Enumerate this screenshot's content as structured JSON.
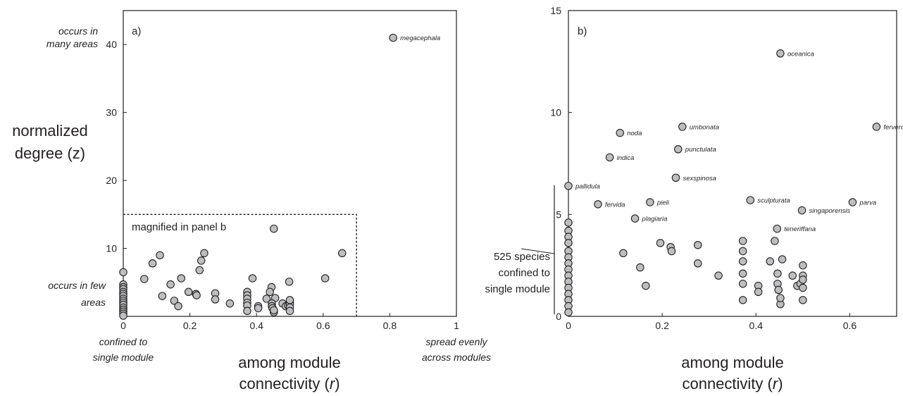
{
  "chart_data": [
    {
      "panel": "a)",
      "type": "scatter",
      "xlim": [
        0,
        1
      ],
      "ylim": [
        0,
        45
      ],
      "xticks": [
        0,
        0.2,
        0.4,
        0.6,
        0.8,
        1
      ],
      "xtick_labels": [
        "0",
        "0.2",
        "0.4",
        "0.6",
        "0.8",
        "1"
      ],
      "yticks": [
        10,
        20,
        30,
        40
      ],
      "ytick_labels": [
        "10",
        "20",
        "30",
        "40"
      ],
      "ylabel_line1": "normalized",
      "ylabel_line2": "degree (z)",
      "xlabel_line1": "among module",
      "xlabel_line2_pre": "connectivity (",
      "xlabel_line2_var": "r",
      "xlabel_line2_post": ")",
      "y_high_note_line1": "occurs in",
      "y_high_note_line2": "many areas",
      "y_low_note_line1": "occurs in few",
      "y_low_note_line2": "areas",
      "x_low_note_line1": "confined to",
      "x_low_note_line2": "single module",
      "x_high_note_line1": "spread evenly",
      "x_high_note_line2": "across modules",
      "inset_label": "magnified in panel b",
      "inset_box": {
        "x": [
          0,
          0.7
        ],
        "y": [
          0,
          15
        ]
      },
      "points": [
        {
          "x": 0.81,
          "y": 41.0,
          "label": "megacephala"
        },
        {
          "x": 0.452,
          "y": 12.9
        },
        {
          "x": 0.11,
          "y": 9.0
        },
        {
          "x": 0.243,
          "y": 9.3
        },
        {
          "x": 0.657,
          "y": 9.3
        },
        {
          "x": 0.234,
          "y": 8.2
        },
        {
          "x": 0.088,
          "y": 7.8
        },
        {
          "x": 0.229,
          "y": 6.8
        },
        {
          "x": 0.0,
          "y": 6.5
        },
        {
          "x": 0.063,
          "y": 5.5
        },
        {
          "x": 0.174,
          "y": 5.6
        },
        {
          "x": 0.388,
          "y": 5.6
        },
        {
          "x": 0.606,
          "y": 5.6
        },
        {
          "x": 0.142,
          "y": 4.7
        },
        {
          "x": 0.498,
          "y": 5.1
        },
        {
          "x": 0.445,
          "y": 4.3
        },
        {
          "x": 0.196,
          "y": 3.6
        },
        {
          "x": 0.218,
          "y": 3.3
        },
        {
          "x": 0.22,
          "y": 3.1
        },
        {
          "x": 0.117,
          "y": 3.0
        },
        {
          "x": 0.276,
          "y": 3.4
        },
        {
          "x": 0.276,
          "y": 2.5
        },
        {
          "x": 0.372,
          "y": 3.6
        },
        {
          "x": 0.372,
          "y": 3.1
        },
        {
          "x": 0.372,
          "y": 2.6
        },
        {
          "x": 0.372,
          "y": 2.0
        },
        {
          "x": 0.372,
          "y": 1.6
        },
        {
          "x": 0.372,
          "y": 0.8
        },
        {
          "x": 0.153,
          "y": 2.3
        },
        {
          "x": 0.165,
          "y": 1.5
        },
        {
          "x": 0.32,
          "y": 1.9
        },
        {
          "x": 0.405,
          "y": 1.5
        },
        {
          "x": 0.43,
          "y": 2.6
        },
        {
          "x": 0.44,
          "y": 3.6
        },
        {
          "x": 0.456,
          "y": 2.7
        },
        {
          "x": 0.446,
          "y": 1.9
        },
        {
          "x": 0.446,
          "y": 1.5
        },
        {
          "x": 0.448,
          "y": 1.2
        },
        {
          "x": 0.452,
          "y": 0.6
        },
        {
          "x": 0.452,
          "y": 0.9
        },
        {
          "x": 0.478,
          "y": 1.9
        },
        {
          "x": 0.488,
          "y": 1.5
        },
        {
          "x": 0.495,
          "y": 1.6
        },
        {
          "x": 0.5,
          "y": 2.0
        },
        {
          "x": 0.5,
          "y": 1.8
        },
        {
          "x": 0.5,
          "y": 1.3
        },
        {
          "x": 0.5,
          "y": 0.8
        },
        {
          "x": 0.5,
          "y": 2.4
        },
        {
          "x": 0.405,
          "y": 1.2
        },
        {
          "x": 0.0,
          "y": 4.7
        },
        {
          "x": 0.0,
          "y": 4.3
        },
        {
          "x": 0.0,
          "y": 4.0
        },
        {
          "x": 0.0,
          "y": 3.6
        },
        {
          "x": 0.0,
          "y": 3.3
        },
        {
          "x": 0.0,
          "y": 3.0
        },
        {
          "x": 0.0,
          "y": 2.6
        },
        {
          "x": 0.0,
          "y": 2.3
        },
        {
          "x": 0.0,
          "y": 2.0
        },
        {
          "x": 0.0,
          "y": 1.7
        },
        {
          "x": 0.0,
          "y": 1.3
        },
        {
          "x": 0.0,
          "y": 1.0
        },
        {
          "x": 0.0,
          "y": 0.7
        },
        {
          "x": 0.0,
          "y": 0.4
        },
        {
          "x": 0.0,
          "y": 0.1
        }
      ]
    },
    {
      "panel": "b)",
      "type": "scatter",
      "xlim": [
        0,
        0.7
      ],
      "ylim": [
        0,
        15
      ],
      "xticks": [
        0,
        0.2,
        0.4,
        0.6
      ],
      "xtick_labels": [
        "0",
        "0.2",
        "0.4",
        "0.6"
      ],
      "yticks": [
        0,
        5,
        10,
        15
      ],
      "ytick_labels": [
        "0",
        "5",
        "10",
        "15"
      ],
      "xlabel_line1": "among module",
      "xlabel_line2_pre": "connectivity (",
      "xlabel_line2_var": "r",
      "xlabel_line2_post": ")",
      "annotation_line1": "525 species",
      "annotation_line2": "confined to",
      "annotation_line3": "single module",
      "points": [
        {
          "x": 0.452,
          "y": 12.9,
          "label": "oceanica"
        },
        {
          "x": 0.11,
          "y": 9.0,
          "label": "noda"
        },
        {
          "x": 0.243,
          "y": 9.3,
          "label": "umbonata"
        },
        {
          "x": 0.657,
          "y": 9.3,
          "label": "fervens"
        },
        {
          "x": 0.234,
          "y": 8.2,
          "label": "punctulata"
        },
        {
          "x": 0.088,
          "y": 7.8,
          "label": "indica"
        },
        {
          "x": 0.229,
          "y": 6.8,
          "label": "sexspinosa"
        },
        {
          "x": 0.0,
          "y": 6.4,
          "label": "pallidula"
        },
        {
          "x": 0.063,
          "y": 5.5,
          "label": "fervida"
        },
        {
          "x": 0.174,
          "y": 5.6,
          "label": "pieli"
        },
        {
          "x": 0.388,
          "y": 5.7,
          "label": "sculpturata"
        },
        {
          "x": 0.606,
          "y": 5.6,
          "label": "parva"
        },
        {
          "x": 0.498,
          "y": 5.2,
          "label": "singaporensis"
        },
        {
          "x": 0.142,
          "y": 4.8,
          "label": "plagiaria"
        },
        {
          "x": 0.445,
          "y": 4.3,
          "label": "teneriffana"
        },
        {
          "x": 0.196,
          "y": 3.6
        },
        {
          "x": 0.218,
          "y": 3.4
        },
        {
          "x": 0.22,
          "y": 3.2
        },
        {
          "x": 0.117,
          "y": 3.1
        },
        {
          "x": 0.276,
          "y": 3.5
        },
        {
          "x": 0.276,
          "y": 2.6
        },
        {
          "x": 0.372,
          "y": 3.7
        },
        {
          "x": 0.372,
          "y": 3.2
        },
        {
          "x": 0.372,
          "y": 2.7
        },
        {
          "x": 0.372,
          "y": 2.1
        },
        {
          "x": 0.372,
          "y": 1.6
        },
        {
          "x": 0.372,
          "y": 0.8
        },
        {
          "x": 0.153,
          "y": 2.4
        },
        {
          "x": 0.165,
          "y": 1.5
        },
        {
          "x": 0.32,
          "y": 2.0
        },
        {
          "x": 0.405,
          "y": 1.5
        },
        {
          "x": 0.43,
          "y": 2.7
        },
        {
          "x": 0.44,
          "y": 3.7
        },
        {
          "x": 0.456,
          "y": 2.8
        },
        {
          "x": 0.446,
          "y": 2.1
        },
        {
          "x": 0.446,
          "y": 1.6
        },
        {
          "x": 0.448,
          "y": 1.3
        },
        {
          "x": 0.452,
          "y": 0.6
        },
        {
          "x": 0.452,
          "y": 0.9
        },
        {
          "x": 0.478,
          "y": 2.0
        },
        {
          "x": 0.488,
          "y": 1.5
        },
        {
          "x": 0.495,
          "y": 1.6
        },
        {
          "x": 0.5,
          "y": 2.5
        },
        {
          "x": 0.5,
          "y": 2.0
        },
        {
          "x": 0.5,
          "y": 1.8
        },
        {
          "x": 0.5,
          "y": 1.4
        },
        {
          "x": 0.5,
          "y": 0.8
        },
        {
          "x": 0.405,
          "y": 1.2
        },
        {
          "x": 0.0,
          "y": 4.6
        },
        {
          "x": 0.0,
          "y": 4.2
        },
        {
          "x": 0.0,
          "y": 3.9
        },
        {
          "x": 0.0,
          "y": 3.6
        },
        {
          "x": 0.0,
          "y": 3.2
        },
        {
          "x": 0.0,
          "y": 2.9
        },
        {
          "x": 0.0,
          "y": 2.6
        },
        {
          "x": 0.0,
          "y": 2.3
        },
        {
          "x": 0.0,
          "y": 2.0
        },
        {
          "x": 0.0,
          "y": 1.7
        },
        {
          "x": 0.0,
          "y": 1.4
        },
        {
          "x": 0.0,
          "y": 1.1
        },
        {
          "x": 0.0,
          "y": 0.8
        },
        {
          "x": 0.0,
          "y": 0.5
        },
        {
          "x": 0.0,
          "y": 0.2
        }
      ]
    }
  ]
}
